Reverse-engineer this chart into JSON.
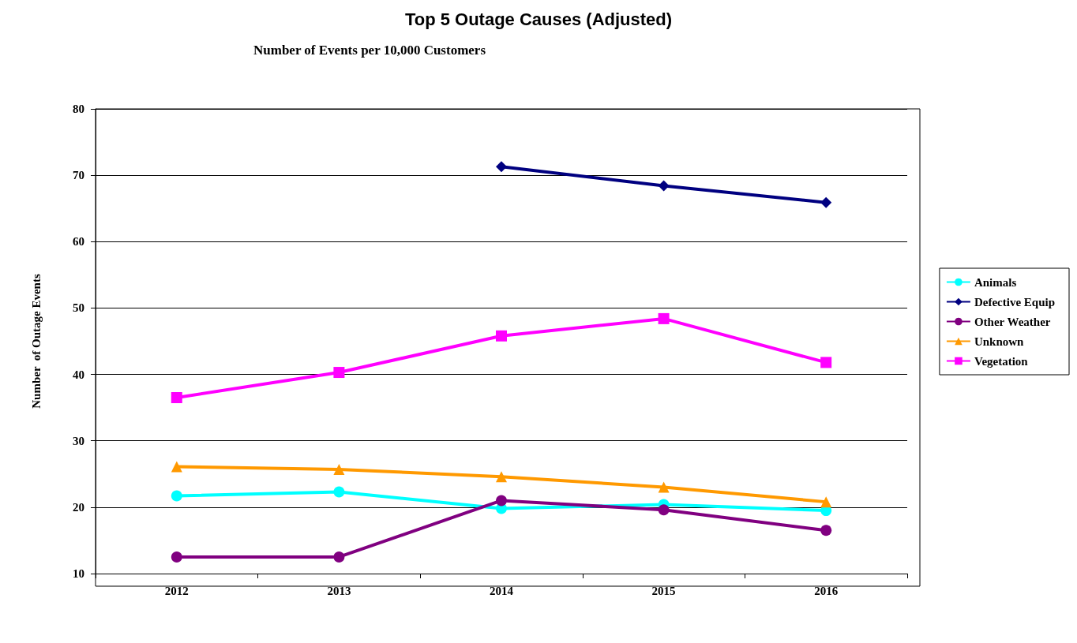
{
  "chart_data": {
    "type": "line",
    "title": "Top 5 Outage Causes (Adjusted)",
    "subtitle": "Number of Events per 10,000 Customers",
    "ylabel": "Number  of Outage Events",
    "categories": [
      "2012",
      "2013",
      "2014",
      "2015",
      "2016"
    ],
    "series": [
      {
        "name": "Animals",
        "color": "#00ffff",
        "marker": "circle",
        "values": [
          21.7,
          22.3,
          19.8,
          20.4,
          19.5
        ]
      },
      {
        "name": "Defective Equip",
        "color": "#000080",
        "marker": "diamond",
        "values": [
          null,
          null,
          71.3,
          68.4,
          65.9
        ]
      },
      {
        "name": "Other Weather",
        "color": "#800080",
        "marker": "circle",
        "values": [
          12.5,
          12.5,
          21.0,
          19.6,
          16.5
        ]
      },
      {
        "name": "Unknown",
        "color": "#ff9900",
        "marker": "triangle",
        "values": [
          26.1,
          25.7,
          24.6,
          23.0,
          20.8
        ]
      },
      {
        "name": "Vegetation",
        "color": "#ff00ff",
        "marker": "square",
        "values": [
          36.5,
          40.3,
          45.8,
          48.4,
          41.8
        ]
      }
    ],
    "ylim": [
      10,
      80
    ],
    "yticks": [
      10,
      20,
      30,
      40,
      50,
      60,
      70,
      80
    ],
    "grid": "y",
    "legend": "right"
  }
}
